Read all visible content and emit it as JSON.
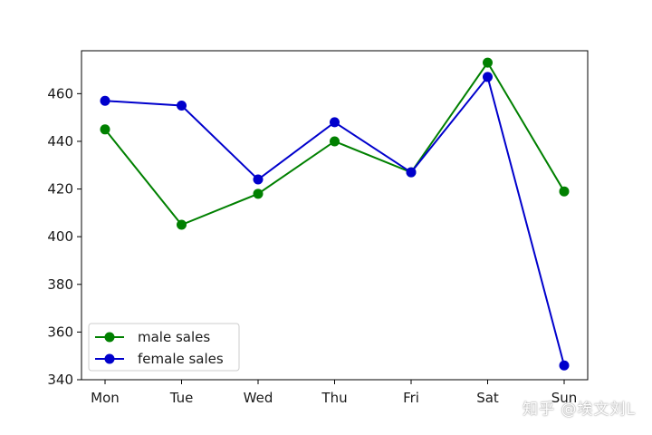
{
  "chart_data": {
    "type": "line",
    "categories": [
      "Mon",
      "Tue",
      "Wed",
      "Thu",
      "Fri",
      "Sat",
      "Sun"
    ],
    "series": [
      {
        "name": "male sales",
        "color": "#008000",
        "values": [
          445,
          405,
          418,
          440,
          427,
          473,
          419
        ]
      },
      {
        "name": "female sales",
        "color": "#0000cc",
        "values": [
          457,
          455,
          424,
          448,
          427,
          467,
          346
        ]
      }
    ],
    "title": "",
    "xlabel": "",
    "ylabel": "",
    "ylim": [
      340,
      478
    ],
    "yticks": [
      340,
      360,
      380,
      400,
      420,
      440,
      460
    ],
    "grid": false,
    "legend_position": "lower-left",
    "marker": "circle"
  },
  "watermark": "知乎 @埃文刘L"
}
